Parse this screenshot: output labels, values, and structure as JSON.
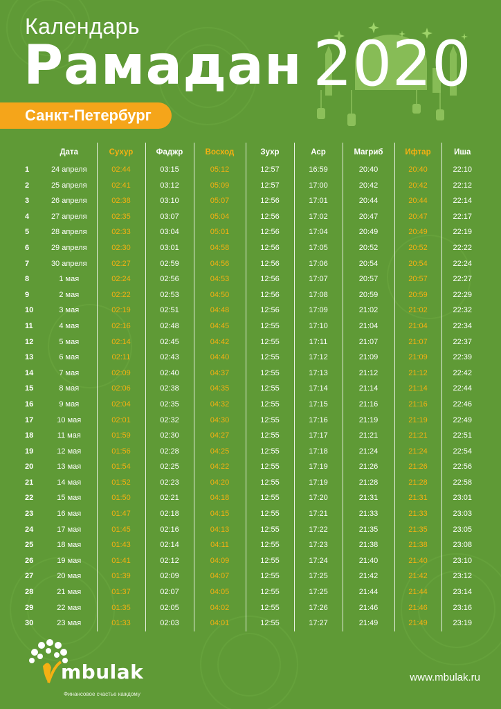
{
  "header": {
    "subtitle": "Календарь",
    "title": "Рамадан",
    "year": "2020",
    "city": "Санкт-Петербург"
  },
  "colors": {
    "background": "#5f9a36",
    "accent": "#f5a51a",
    "text": "#ffffff"
  },
  "table": {
    "columns": [
      "",
      "Дата",
      "Сухур",
      "Фаджр",
      "Восход",
      "Зухр",
      "Аср",
      "Магриб",
      "Ифтар",
      "Иша"
    ],
    "highlighted_columns": [
      "Сухур",
      "Восход",
      "Ифтар"
    ],
    "rows": [
      [
        "1",
        "24 апреля",
        "02:44",
        "03:15",
        "05:12",
        "12:57",
        "16:59",
        "20:40",
        "20:40",
        "22:10"
      ],
      [
        "2",
        "25 апреля",
        "02:41",
        "03:12",
        "05:09",
        "12:57",
        "17:00",
        "20:42",
        "20:42",
        "22:12"
      ],
      [
        "3",
        "26 апреля",
        "02:38",
        "03:10",
        "05:07",
        "12:56",
        "17:01",
        "20:44",
        "20:44",
        "22:14"
      ],
      [
        "4",
        "27 апреля",
        "02:35",
        "03:07",
        "05:04",
        "12:56",
        "17:02",
        "20:47",
        "20:47",
        "22:17"
      ],
      [
        "5",
        "28 апреля",
        "02:33",
        "03:04",
        "05:01",
        "12:56",
        "17:04",
        "20:49",
        "20:49",
        "22:19"
      ],
      [
        "6",
        "29 апреля",
        "02:30",
        "03:01",
        "04:58",
        "12:56",
        "17:05",
        "20:52",
        "20:52",
        "22:22"
      ],
      [
        "7",
        "30 апреля",
        "02:27",
        "02:59",
        "04:56",
        "12:56",
        "17:06",
        "20:54",
        "20:54",
        "22:24"
      ],
      [
        "8",
        "1 мая",
        "02:24",
        "02:56",
        "04:53",
        "12:56",
        "17:07",
        "20:57",
        "20:57",
        "22:27"
      ],
      [
        "9",
        "2 мая",
        "02:22",
        "02:53",
        "04:50",
        "12:56",
        "17:08",
        "20:59",
        "20:59",
        "22:29"
      ],
      [
        "10",
        "3 мая",
        "02:19",
        "02:51",
        "04:48",
        "12:56",
        "17:09",
        "21:02",
        "21:02",
        "22:32"
      ],
      [
        "11",
        "4 мая",
        "02:16",
        "02:48",
        "04:45",
        "12:55",
        "17:10",
        "21:04",
        "21:04",
        "22:34"
      ],
      [
        "12",
        "5 мая",
        "02:14",
        "02:45",
        "04:42",
        "12:55",
        "17:11",
        "21:07",
        "21:07",
        "22:37"
      ],
      [
        "13",
        "6 мая",
        "02:11",
        "02:43",
        "04:40",
        "12:55",
        "17:12",
        "21:09",
        "21:09",
        "22:39"
      ],
      [
        "14",
        "7 мая",
        "02:09",
        "02:40",
        "04:37",
        "12:55",
        "17:13",
        "21:12",
        "21:12",
        "22:42"
      ],
      [
        "15",
        "8 мая",
        "02:06",
        "02:38",
        "04:35",
        "12:55",
        "17:14",
        "21:14",
        "21:14",
        "22:44"
      ],
      [
        "16",
        "9 мая",
        "02:04",
        "02:35",
        "04:32",
        "12:55",
        "17:15",
        "21:16",
        "21:16",
        "22:46"
      ],
      [
        "17",
        "10 мая",
        "02:01",
        "02:32",
        "04:30",
        "12:55",
        "17:16",
        "21:19",
        "21:19",
        "22:49"
      ],
      [
        "18",
        "11 мая",
        "01:59",
        "02:30",
        "04:27",
        "12:55",
        "17:17",
        "21:21",
        "21:21",
        "22:51"
      ],
      [
        "19",
        "12 мая",
        "01:56",
        "02:28",
        "04:25",
        "12:55",
        "17:18",
        "21:24",
        "21:24",
        "22:54"
      ],
      [
        "20",
        "13 мая",
        "01:54",
        "02:25",
        "04:22",
        "12:55",
        "17:19",
        "21:26",
        "21:26",
        "22:56"
      ],
      [
        "21",
        "14 мая",
        "01:52",
        "02:23",
        "04:20",
        "12:55",
        "17:19",
        "21:28",
        "21:28",
        "22:58"
      ],
      [
        "22",
        "15 мая",
        "01:50",
        "02:21",
        "04:18",
        "12:55",
        "17:20",
        "21:31",
        "21:31",
        "23:01"
      ],
      [
        "23",
        "16 мая",
        "01:47",
        "02:18",
        "04:15",
        "12:55",
        "17:21",
        "21:33",
        "21:33",
        "23:03"
      ],
      [
        "24",
        "17 мая",
        "01:45",
        "02:16",
        "04:13",
        "12:55",
        "17:22",
        "21:35",
        "21:35",
        "23:05"
      ],
      [
        "25",
        "18 мая",
        "01:43",
        "02:14",
        "04:11",
        "12:55",
        "17:23",
        "21:38",
        "21:38",
        "23:08"
      ],
      [
        "26",
        "19 мая",
        "01:41",
        "02:12",
        "04:09",
        "12:55",
        "17:24",
        "21:40",
        "21:40",
        "23:10"
      ],
      [
        "27",
        "20 мая",
        "01:39",
        "02:09",
        "04:07",
        "12:55",
        "17:25",
        "21:42",
        "21:42",
        "23:12"
      ],
      [
        "28",
        "21 мая",
        "01:37",
        "02:07",
        "04:05",
        "12:55",
        "17:25",
        "21:44",
        "21:44",
        "23:14"
      ],
      [
        "29",
        "22 мая",
        "01:35",
        "02:05",
        "04:02",
        "12:55",
        "17:26",
        "21:46",
        "21:46",
        "23:16"
      ],
      [
        "30",
        "23 мая",
        "01:33",
        "02:03",
        "04:01",
        "12:55",
        "17:27",
        "21:49",
        "21:49",
        "23:19"
      ]
    ]
  },
  "footer": {
    "brand_main": "mbulak",
    "tagline": "Финансовое счастье каждому",
    "website": "www.mbulak.ru"
  }
}
